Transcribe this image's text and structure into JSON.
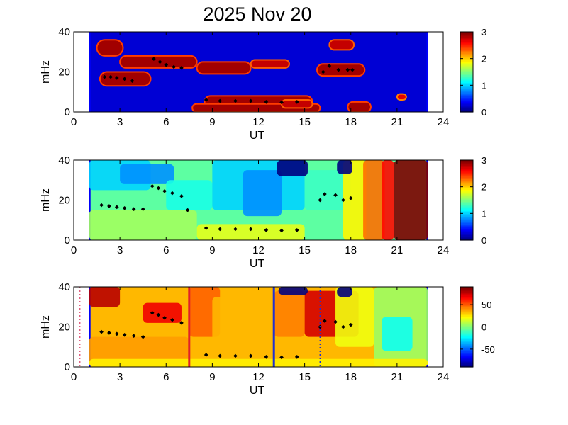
{
  "title": "2025 Nov 20",
  "colors": {
    "background_dark": "#1a2a9a",
    "marker": "#000000",
    "marker_alt": "#ff2020",
    "line_red": "#e0202a",
    "line_blue": "#2030d0",
    "line_dotted_red": "#e06080",
    "line_dotted_blue": "#2030d0"
  },
  "chart_data": [
    {
      "type": "heatmap",
      "xlabel": "UT",
      "ylabel": "mHz",
      "xlim": [
        0,
        24
      ],
      "ylim": [
        0,
        40
      ],
      "xticks": [
        "0",
        "3",
        "6",
        "9",
        "12",
        "15",
        "18",
        "21",
        "24"
      ],
      "yticks": [
        "0",
        "20",
        "40"
      ],
      "colorbar": {
        "range": [
          0,
          3
        ],
        "ticks": [
          "0",
          "1",
          "2",
          "3"
        ]
      },
      "data_extent_x": [
        1,
        23
      ],
      "blobs": [
        {
          "x0": 1.5,
          "x1": 3.2,
          "y0": 28,
          "y1": 36,
          "level": 2.9
        },
        {
          "x0": 3.0,
          "x1": 8.0,
          "y0": 22,
          "y1": 28,
          "level": 2.9
        },
        {
          "x0": 8.0,
          "x1": 11.5,
          "y0": 19,
          "y1": 25,
          "level": 2.9
        },
        {
          "x0": 11.5,
          "x1": 14.0,
          "y0": 22,
          "y1": 26,
          "level": 2.8
        },
        {
          "x0": 1.7,
          "x1": 5.0,
          "y0": 13,
          "y1": 20,
          "level": 2.9
        },
        {
          "x0": 8.5,
          "x1": 15.5,
          "y0": 2,
          "y1": 8,
          "level": 2.9
        },
        {
          "x0": 7.7,
          "x1": 16.0,
          "y0": 0,
          "y1": 4,
          "level": 2.9
        },
        {
          "x0": 15.8,
          "x1": 18.9,
          "y0": 18,
          "y1": 24,
          "level": 2.9
        },
        {
          "x0": 16.6,
          "x1": 18.2,
          "y0": 31,
          "y1": 36,
          "level": 2.8
        },
        {
          "x0": 17.8,
          "x1": 19.3,
          "y0": 0,
          "y1": 5,
          "level": 2.9
        },
        {
          "x0": 21.0,
          "x1": 21.6,
          "y0": 6,
          "y1": 9,
          "level": 2.7
        },
        {
          "x0": 13.5,
          "x1": 15.5,
          "y0": 2,
          "y1": 6,
          "level": 2.8
        }
      ],
      "markers": [
        {
          "x": 2.0,
          "y": 17.5
        },
        {
          "x": 2.4,
          "y": 17.5
        },
        {
          "x": 2.8,
          "y": 17.0
        },
        {
          "x": 3.3,
          "y": 16.5
        },
        {
          "x": 3.8,
          "y": 15.5
        },
        {
          "x": 5.2,
          "y": 26.5
        },
        {
          "x": 5.6,
          "y": 25.0
        },
        {
          "x": 6.0,
          "y": 23.5
        },
        {
          "x": 6.5,
          "y": 22.5
        },
        {
          "x": 7.0,
          "y": 22.0
        },
        {
          "x": 8.6,
          "y": 6.0
        },
        {
          "x": 9.5,
          "y": 5.5
        },
        {
          "x": 10.5,
          "y": 5.5
        },
        {
          "x": 11.5,
          "y": 5.5
        },
        {
          "x": 12.5,
          "y": 5.0
        },
        {
          "x": 13.5,
          "y": 4.8
        },
        {
          "x": 14.5,
          "y": 5.0
        },
        {
          "x": 16.2,
          "y": 20.0
        },
        {
          "x": 16.6,
          "y": 23.0
        },
        {
          "x": 17.2,
          "y": 21.0
        },
        {
          "x": 17.8,
          "y": 21.0
        },
        {
          "x": 18.1,
          "y": 21.0
        }
      ]
    },
    {
      "type": "heatmap",
      "xlabel": "UT",
      "ylabel": "mHz",
      "xlim": [
        0,
        24
      ],
      "ylim": [
        0,
        40
      ],
      "xticks": [
        "0",
        "3",
        "6",
        "9",
        "12",
        "15",
        "18",
        "21",
        "24"
      ],
      "yticks": [
        "0",
        "20",
        "40"
      ],
      "colorbar": {
        "range": [
          0,
          3
        ],
        "ticks": [
          "0",
          "1",
          "2",
          "3"
        ]
      },
      "data_extent_x": [
        1,
        23
      ],
      "base_level": 1.4,
      "patches": [
        {
          "x0": 1.0,
          "x1": 5.0,
          "y0": 25,
          "y1": 40,
          "level": 1.0
        },
        {
          "x0": 3.0,
          "x1": 6.5,
          "y0": 28,
          "y1": 38,
          "level": 0.8
        },
        {
          "x0": 6.0,
          "x1": 9.0,
          "y0": 15,
          "y1": 30,
          "level": 1.2
        },
        {
          "x0": 9.0,
          "x1": 15.0,
          "y0": 15,
          "y1": 40,
          "level": 1.0
        },
        {
          "x0": 11.0,
          "x1": 13.5,
          "y0": 12,
          "y1": 35,
          "level": 0.8
        },
        {
          "x0": 1.0,
          "x1": 8.0,
          "y0": 0,
          "y1": 15,
          "level": 1.6
        },
        {
          "x0": 8.0,
          "x1": 15.0,
          "y0": 0,
          "y1": 8,
          "level": 1.8
        },
        {
          "x0": 15.0,
          "x1": 18.0,
          "y0": 15,
          "y1": 35,
          "level": 1.3
        },
        {
          "x0": 17.5,
          "x1": 19.0,
          "y0": 0,
          "y1": 40,
          "level": 1.9
        },
        {
          "x0": 18.8,
          "x1": 20.2,
          "y0": 0,
          "y1": 40,
          "level": 2.3
        },
        {
          "x0": 20.0,
          "x1": 20.8,
          "y0": 0,
          "y1": 40,
          "level": 2.6
        },
        {
          "x0": 20.8,
          "x1": 23.0,
          "y0": 0,
          "y1": 40,
          "level": 3.0
        },
        {
          "x0": 13.2,
          "x1": 15.2,
          "y0": 32,
          "y1": 40,
          "level": 0.0
        },
        {
          "x0": 17.1,
          "x1": 18.1,
          "y0": 33,
          "y1": 40,
          "level": 0.0
        }
      ],
      "markers": [
        {
          "x": 1.8,
          "y": 17.5
        },
        {
          "x": 2.3,
          "y": 17.0
        },
        {
          "x": 2.8,
          "y": 16.5
        },
        {
          "x": 3.3,
          "y": 16.0
        },
        {
          "x": 3.9,
          "y": 15.5
        },
        {
          "x": 4.5,
          "y": 15.5
        },
        {
          "x": 5.1,
          "y": 27.0
        },
        {
          "x": 5.5,
          "y": 26.0
        },
        {
          "x": 5.9,
          "y": 24.5
        },
        {
          "x": 6.4,
          "y": 23.5
        },
        {
          "x": 7.0,
          "y": 22.0
        },
        {
          "x": 7.4,
          "y": 15.0
        },
        {
          "x": 8.6,
          "y": 6.0
        },
        {
          "x": 9.5,
          "y": 5.5
        },
        {
          "x": 10.5,
          "y": 5.5
        },
        {
          "x": 11.5,
          "y": 5.5
        },
        {
          "x": 12.5,
          "y": 5.0
        },
        {
          "x": 13.5,
          "y": 4.8
        },
        {
          "x": 14.5,
          "y": 5.0
        },
        {
          "x": 16.0,
          "y": 20.0
        },
        {
          "x": 16.3,
          "y": 23.0
        },
        {
          "x": 17.0,
          "y": 22.5
        },
        {
          "x": 17.5,
          "y": 20.0
        },
        {
          "x": 18.0,
          "y": 21.0
        }
      ]
    },
    {
      "type": "heatmap",
      "xlabel": "UT",
      "ylabel": "mHz",
      "xlim": [
        0,
        24
      ],
      "ylim": [
        0,
        40
      ],
      "xticks": [
        "0",
        "3",
        "6",
        "9",
        "12",
        "15",
        "18",
        "21",
        "24"
      ],
      "yticks": [
        "0",
        "20",
        "40"
      ],
      "colorbar": {
        "range": [
          -90,
          90
        ],
        "ticks": [
          "50",
          "0",
          "-50"
        ],
        "tick_values": [
          50,
          0,
          -50
        ]
      },
      "data_extent_x": [
        1,
        23
      ],
      "base_level": 35,
      "patches": [
        {
          "x0": 1.0,
          "x1": 3.0,
          "y0": 30,
          "y1": 40,
          "level": 80
        },
        {
          "x0": 4.5,
          "x1": 7.0,
          "y0": 22,
          "y1": 32,
          "level": 70
        },
        {
          "x0": 1.0,
          "x1": 7.5,
          "y0": 0,
          "y1": 15,
          "level": 40
        },
        {
          "x0": 7.5,
          "x1": 9.5,
          "y0": 15,
          "y1": 40,
          "level": 50
        },
        {
          "x0": 9.0,
          "x1": 13.0,
          "y0": 8,
          "y1": 35,
          "level": 35
        },
        {
          "x0": 13.0,
          "x1": 15.0,
          "y0": 15,
          "y1": 38,
          "level": 45
        },
        {
          "x0": 15.0,
          "x1": 18.5,
          "y0": 15,
          "y1": 38,
          "level": 75
        },
        {
          "x0": 17.0,
          "x1": 19.5,
          "y0": 10,
          "y1": 40,
          "level": 20
        },
        {
          "x0": 19.5,
          "x1": 23.0,
          "y0": 0,
          "y1": 40,
          "level": 5
        },
        {
          "x0": 20.0,
          "x1": 22.0,
          "y0": 8,
          "y1": 25,
          "level": -20
        },
        {
          "x0": 1.0,
          "x1": 23.0,
          "y0": 0,
          "y1": 4,
          "level": 25
        },
        {
          "x0": 13.3,
          "x1": 15.2,
          "y0": 36,
          "y1": 40,
          "level": -90
        },
        {
          "x0": 17.1,
          "x1": 18.1,
          "y0": 35,
          "y1": 40,
          "level": -90
        }
      ],
      "markers": [
        {
          "x": 1.8,
          "y": 17.5
        },
        {
          "x": 2.3,
          "y": 17.0
        },
        {
          "x": 2.8,
          "y": 16.5
        },
        {
          "x": 3.3,
          "y": 16.0
        },
        {
          "x": 3.9,
          "y": 15.5
        },
        {
          "x": 4.5,
          "y": 15.0
        },
        {
          "x": 5.1,
          "y": 27.0
        },
        {
          "x": 5.5,
          "y": 26.0
        },
        {
          "x": 5.9,
          "y": 24.5
        },
        {
          "x": 6.4,
          "y": 23.5
        },
        {
          "x": 7.0,
          "y": 22.0
        },
        {
          "x": 8.6,
          "y": 6.0
        },
        {
          "x": 9.5,
          "y": 5.5
        },
        {
          "x": 10.5,
          "y": 5.5
        },
        {
          "x": 11.5,
          "y": 5.5
        },
        {
          "x": 12.5,
          "y": 5.0
        },
        {
          "x": 13.5,
          "y": 4.8
        },
        {
          "x": 14.5,
          "y": 5.0
        },
        {
          "x": 16.0,
          "y": 20.0
        },
        {
          "x": 16.3,
          "y": 23.0
        },
        {
          "x": 17.0,
          "y": 22.5
        },
        {
          "x": 17.5,
          "y": 20.0
        },
        {
          "x": 18.0,
          "y": 21.0
        }
      ],
      "vlines": [
        {
          "x": 0.4,
          "style": "dotted",
          "color": "#e06080"
        },
        {
          "x": 7.5,
          "style": "solid",
          "color": "#e0202a"
        },
        {
          "x": 13.0,
          "style": "solid",
          "color": "#2030d0"
        },
        {
          "x": 16.0,
          "style": "dotted",
          "color": "#2030d0"
        }
      ]
    }
  ]
}
